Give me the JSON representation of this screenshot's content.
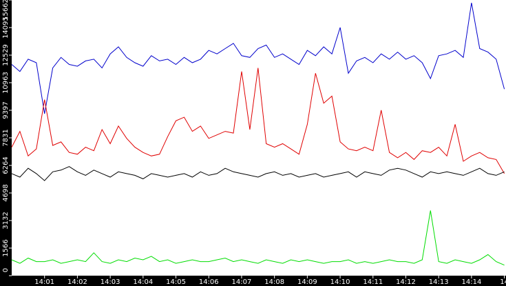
{
  "chart_data": {
    "type": "line",
    "x": [
      0,
      0.25,
      0.5,
      0.75,
      1,
      1.25,
      1.5,
      1.75,
      2,
      2.25,
      2.5,
      2.75,
      3,
      3.25,
      3.5,
      3.75,
      4,
      4.25,
      4.5,
      4.75,
      5,
      5.25,
      5.5,
      5.75,
      6,
      6.25,
      6.5,
      6.75,
      7,
      7.25,
      7.5,
      7.75,
      8,
      8.25,
      8.5,
      8.75,
      9,
      9.25,
      9.5,
      9.75,
      10,
      10.25,
      10.5,
      10.75,
      11,
      11.25,
      11.5,
      11.75,
      12,
      12.25,
      12.5,
      12.75,
      13,
      13.25,
      13.5,
      13.75,
      14,
      14.25,
      14.5,
      14.75,
      15
    ],
    "xlim": [
      0,
      15.05
    ],
    "xticks": [
      {
        "value": 1,
        "label": "14:01"
      },
      {
        "value": 2,
        "label": "14:02"
      },
      {
        "value": 3,
        "label": "14:03"
      },
      {
        "value": 4,
        "label": "14:04"
      },
      {
        "value": 5,
        "label": "14:05"
      },
      {
        "value": 6,
        "label": "14:06"
      },
      {
        "value": 7,
        "label": "14:07"
      },
      {
        "value": 8,
        "label": "14:08"
      },
      {
        "value": 9,
        "label": "14:09"
      },
      {
        "value": 10,
        "label": "14:10"
      },
      {
        "value": 11,
        "label": "14:11"
      },
      {
        "value": 12,
        "label": "14:12"
      },
      {
        "value": 13,
        "label": "14:13"
      },
      {
        "value": 14,
        "label": "14:14"
      },
      {
        "value": 15,
        "label": "14"
      }
    ],
    "ylim": [
      0,
      15662
    ],
    "yticks": [
      0,
      1566,
      3132,
      4698,
      6264,
      7831,
      9397,
      10963,
      12529,
      14095,
      15662
    ],
    "series": [
      {
        "color": "#0000cc",
        "values": [
          12000,
          11600,
          12300,
          12100,
          9200,
          11800,
          12400,
          12000,
          11900,
          12200,
          12300,
          11800,
          12600,
          13000,
          12400,
          12100,
          11900,
          12500,
          12200,
          12300,
          12000,
          12400,
          12100,
          12300,
          12800,
          12600,
          12900,
          13200,
          12500,
          12400,
          12900,
          13100,
          12400,
          12600,
          12300,
          12000,
          12800,
          12500,
          13000,
          12600,
          14100,
          11500,
          12200,
          12400,
          12100,
          12600,
          12300,
          12700,
          12300,
          12500,
          12100,
          11200,
          12500,
          12600,
          12800,
          12400,
          15500,
          12900,
          12700,
          12300,
          10600
        ]
      },
      {
        "color": "#e00000",
        "values": [
          7300,
          8200,
          6800,
          7200,
          10000,
          7400,
          7600,
          7000,
          6900,
          7300,
          7100,
          8300,
          7500,
          8500,
          7800,
          7300,
          7000,
          6800,
          6900,
          7900,
          8800,
          9000,
          8200,
          8500,
          7800,
          8000,
          8200,
          8100,
          11600,
          8300,
          11800,
          7500,
          7300,
          7500,
          7200,
          6900,
          8600,
          11500,
          9800,
          10200,
          7600,
          7200,
          7100,
          7300,
          7100,
          9400,
          7000,
          6700,
          7000,
          6600,
          7100,
          7000,
          7300,
          6800,
          8600,
          6500,
          6800,
          7000,
          6700,
          6600,
          5800
        ]
      },
      {
        "color": "#000000",
        "values": [
          5800,
          5600,
          6100,
          5800,
          5400,
          5900,
          6000,
          6200,
          5900,
          5700,
          6000,
          5800,
          5600,
          5900,
          5800,
          5700,
          5500,
          5800,
          5700,
          5600,
          5700,
          5800,
          5600,
          5900,
          5700,
          5800,
          6100,
          5900,
          5800,
          5700,
          5600,
          5800,
          5900,
          5700,
          5800,
          5600,
          5700,
          5800,
          5600,
          5700,
          5800,
          5900,
          5600,
          5900,
          5800,
          5700,
          6000,
          6100,
          6000,
          5800,
          5600,
          5900,
          5800,
          5900,
          5800,
          5700,
          5900,
          6100,
          5800,
          5700,
          5900
        ]
      },
      {
        "color": "#00dd00",
        "values": [
          900,
          700,
          1000,
          800,
          800,
          900,
          700,
          800,
          900,
          800,
          1300,
          800,
          700,
          900,
          800,
          1000,
          900,
          1100,
          800,
          900,
          700,
          800,
          900,
          800,
          800,
          900,
          1000,
          800,
          900,
          800,
          700,
          900,
          800,
          700,
          900,
          800,
          900,
          800,
          700,
          800,
          800,
          900,
          700,
          800,
          700,
          800,
          900,
          800,
          800,
          700,
          900,
          3700,
          800,
          700,
          900,
          800,
          700,
          900,
          1200,
          800,
          600
        ]
      }
    ]
  }
}
